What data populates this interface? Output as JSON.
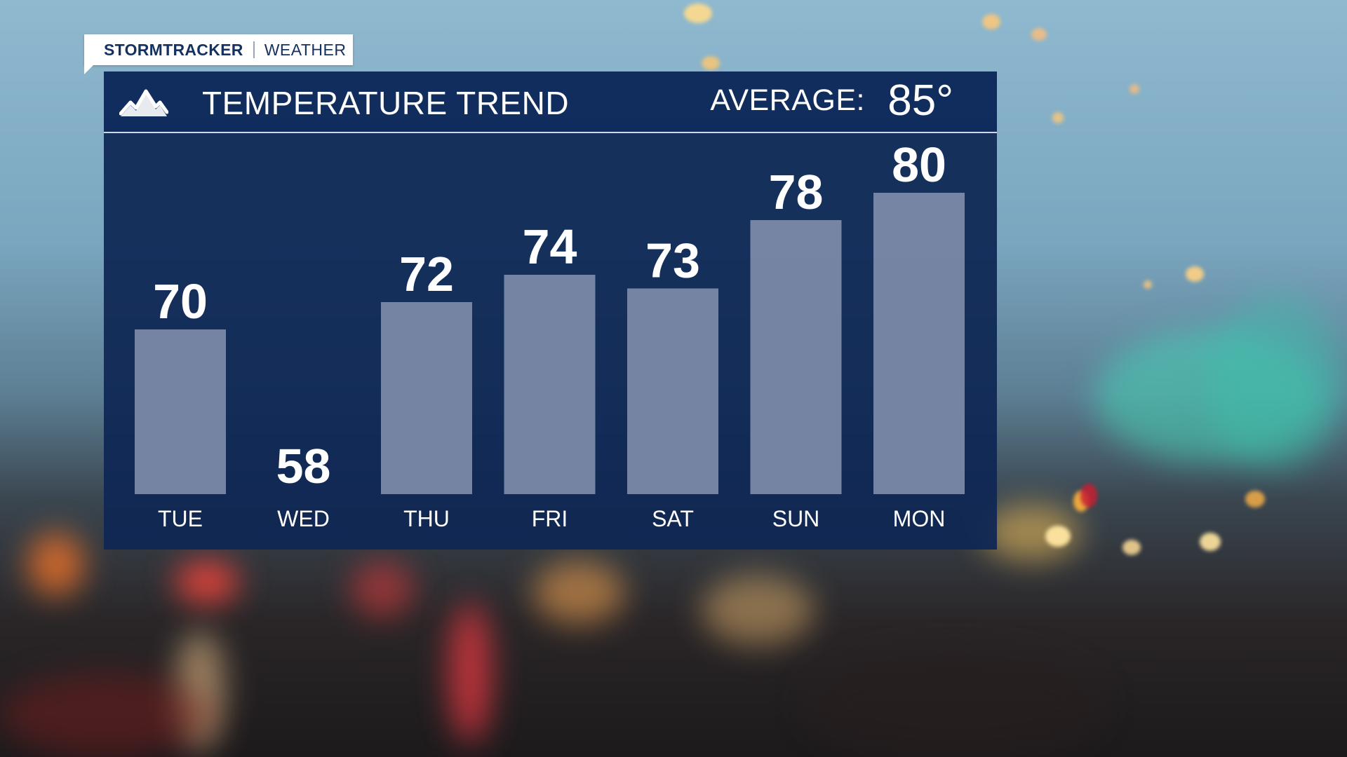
{
  "brand": {
    "primary": "STORMTRACKER",
    "secondary": "WEATHER"
  },
  "header": {
    "icon": "mountain-icon",
    "title": "TEMPERATURE TREND",
    "average_label": "AVERAGE:",
    "average_value": "85°"
  },
  "colors": {
    "panel": "#0e2754",
    "bar": "#8391ad",
    "text": "#ffffff",
    "brand_text": "#14315f"
  },
  "chart_data": {
    "type": "bar",
    "title": "TEMPERATURE TREND",
    "categories": [
      "TUE",
      "WED",
      "THU",
      "FRI",
      "SAT",
      "SUN",
      "MON"
    ],
    "values": [
      70,
      58,
      72,
      74,
      73,
      78,
      80
    ],
    "value_labels": [
      "70",
      "58",
      "72",
      "74",
      "73",
      "78",
      "80"
    ],
    "ylim": [
      58,
      80
    ],
    "grid": false,
    "legend": "none"
  }
}
